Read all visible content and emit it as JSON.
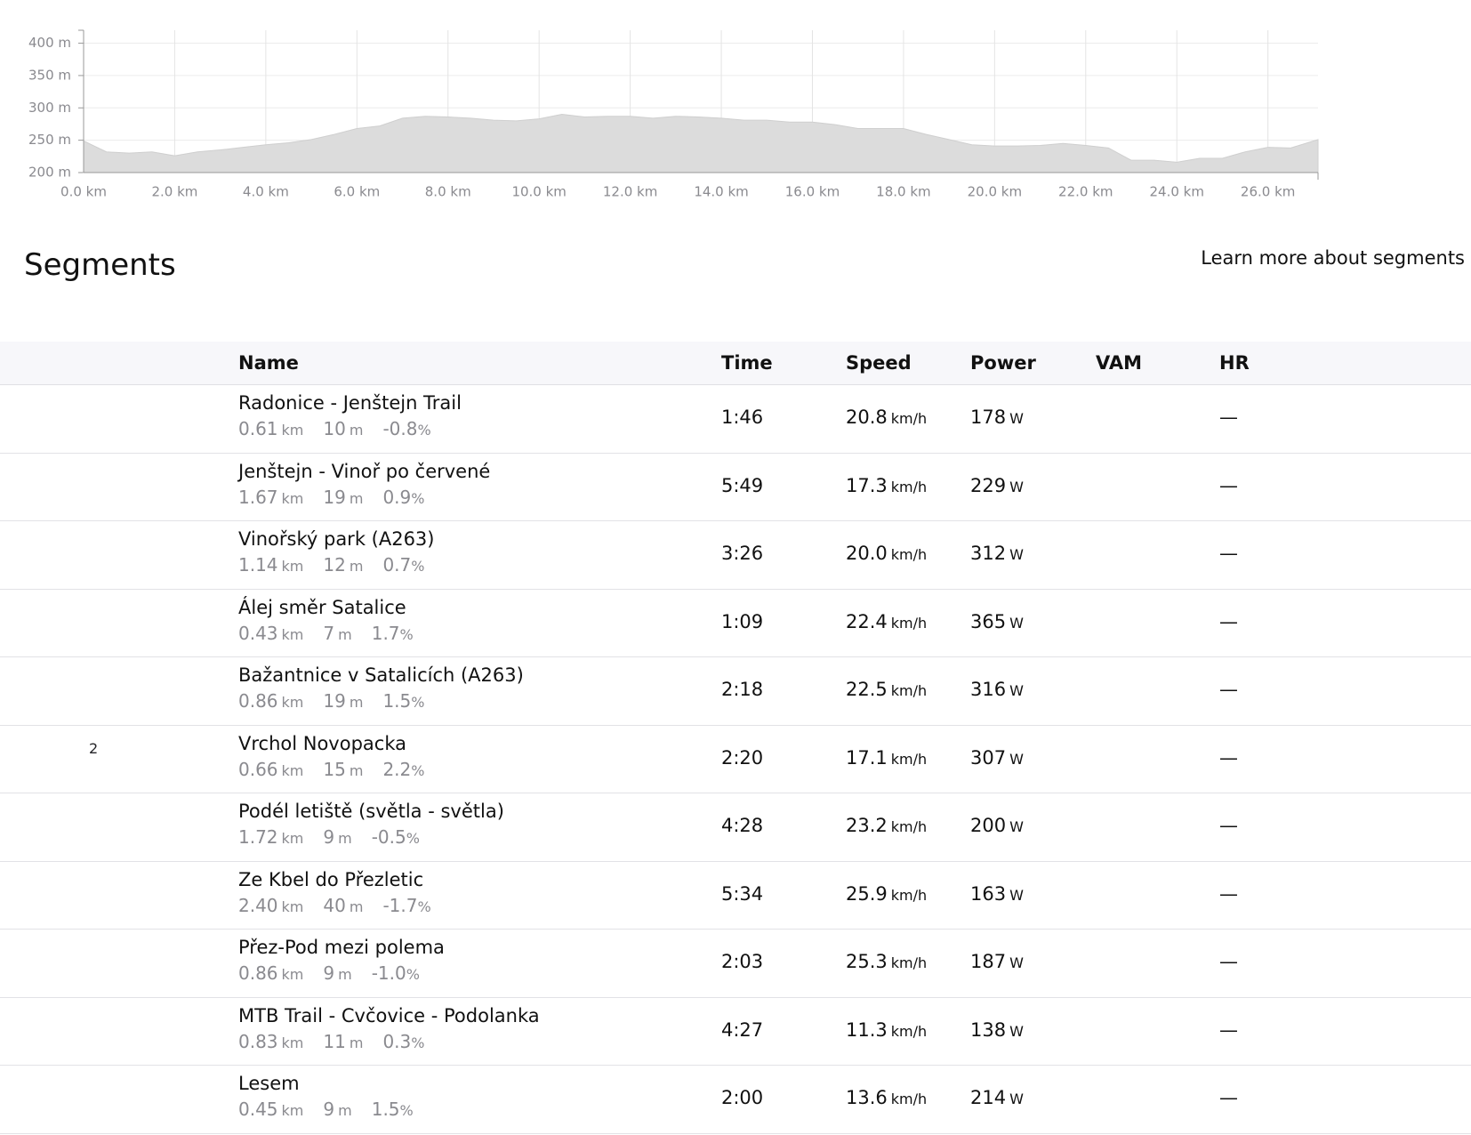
{
  "chart_data": {
    "type": "area",
    "x": [
      0,
      0.5,
      1,
      1.5,
      2,
      2.5,
      3,
      3.5,
      4,
      4.5,
      5,
      5.5,
      6,
      6.5,
      7,
      7.5,
      8,
      8.5,
      9,
      9.5,
      10,
      10.5,
      11,
      11.5,
      12,
      12.5,
      13,
      13.5,
      14,
      14.5,
      15,
      15.5,
      16,
      16.5,
      17,
      17.5,
      18,
      18.5,
      19,
      19.5,
      20,
      20.5,
      21,
      21.5,
      22,
      22.5,
      23,
      23.5,
      24,
      24.5,
      25,
      25.5,
      26,
      26.5,
      27.1
    ],
    "values": [
      249,
      232,
      230,
      232,
      226,
      232,
      235,
      239,
      243,
      246,
      251,
      259,
      268,
      272,
      284,
      287,
      286,
      284,
      281,
      280,
      283,
      290,
      286,
      287,
      287,
      284,
      287,
      286,
      284,
      281,
      281,
      278,
      278,
      274,
      268,
      268,
      268,
      259,
      251,
      243,
      241,
      241,
      242,
      245,
      242,
      238,
      219,
      219,
      216,
      222,
      222,
      232,
      239,
      238,
      251
    ],
    "color": "#dcdcdc",
    "xlim": [
      0,
      27.1
    ],
    "ylim": [
      200,
      420
    ],
    "xticks": [
      {
        "value": 0,
        "label": "0.0 km"
      },
      {
        "value": 2,
        "label": "2.0 km"
      },
      {
        "value": 4,
        "label": "4.0 km"
      },
      {
        "value": 6,
        "label": "6.0 km"
      },
      {
        "value": 8,
        "label": "8.0 km"
      },
      {
        "value": 10,
        "label": "10.0 km"
      },
      {
        "value": 12,
        "label": "12.0 km"
      },
      {
        "value": 14,
        "label": "14.0 km"
      },
      {
        "value": 16,
        "label": "16.0 km"
      },
      {
        "value": 18,
        "label": "18.0 km"
      },
      {
        "value": 20,
        "label": "20.0 km"
      },
      {
        "value": 22,
        "label": "22.0 km"
      },
      {
        "value": 24,
        "label": "24.0 km"
      },
      {
        "value": 26,
        "label": "26.0 km"
      }
    ],
    "yticks": [
      {
        "value": 200,
        "label": "200 m"
      },
      {
        "value": 250,
        "label": "250 m"
      },
      {
        "value": 300,
        "label": "300 m"
      },
      {
        "value": 350,
        "label": "350 m"
      },
      {
        "value": 400,
        "label": "400 m"
      }
    ],
    "grid": true
  },
  "segments": {
    "title": "Segments",
    "link": "Learn more about segments",
    "columns": [
      "Name",
      "Time",
      "Speed",
      "Power",
      "VAM",
      "HR"
    ],
    "rows": [
      {
        "name": "Radonice - Jenštejn Trail",
        "distance": "0.61",
        "distance_unit": "km",
        "elevation": "10",
        "elevation_unit": "m",
        "grade": "-0.8",
        "grade_unit": "%",
        "time": "1:46",
        "speed": "20.8",
        "speed_unit": "km/h",
        "power": "178",
        "power_unit": "W",
        "hr": "—"
      },
      {
        "name": "Jenštejn - Vinoř po červené",
        "distance": "1.67",
        "distance_unit": "km",
        "elevation": "19",
        "elevation_unit": "m",
        "grade": "0.9",
        "grade_unit": "%",
        "time": "5:49",
        "speed": "17.3",
        "speed_unit": "km/h",
        "power": "229",
        "power_unit": "W",
        "hr": "—"
      },
      {
        "name": "Vinořský park (A263)",
        "distance": "1.14",
        "distance_unit": "km",
        "elevation": "12",
        "elevation_unit": "m",
        "grade": "0.7",
        "grade_unit": "%",
        "time": "3:26",
        "speed": "20.0",
        "speed_unit": "km/h",
        "power": "312",
        "power_unit": "W",
        "hr": "—"
      },
      {
        "name": "Álej směr Satalice",
        "distance": "0.43",
        "distance_unit": "km",
        "elevation": "7",
        "elevation_unit": "m",
        "grade": "1.7",
        "grade_unit": "%",
        "time": "1:09",
        "speed": "22.4",
        "speed_unit": "km/h",
        "power": "365",
        "power_unit": "W",
        "hr": "—"
      },
      {
        "name": "Bažantnice v Satalicích (A263)",
        "distance": "0.86",
        "distance_unit": "km",
        "elevation": "19",
        "elevation_unit": "m",
        "grade": "1.5",
        "grade_unit": "%",
        "time": "2:18",
        "speed": "22.5",
        "speed_unit": "km/h",
        "power": "316",
        "power_unit": "W",
        "hr": "—"
      },
      {
        "name": "Vrchol Novopacka",
        "achievement": "2",
        "distance": "0.66",
        "distance_unit": "km",
        "elevation": "15",
        "elevation_unit": "m",
        "grade": "2.2",
        "grade_unit": "%",
        "time": "2:20",
        "speed": "17.1",
        "speed_unit": "km/h",
        "power": "307",
        "power_unit": "W",
        "hr": "—"
      },
      {
        "name": "Podél letiště (světla - světla)",
        "distance": "1.72",
        "distance_unit": "km",
        "elevation": "9",
        "elevation_unit": "m",
        "grade": "-0.5",
        "grade_unit": "%",
        "time": "4:28",
        "speed": "23.2",
        "speed_unit": "km/h",
        "power": "200",
        "power_unit": "W",
        "hr": "—"
      },
      {
        "name": "Ze Kbel do Přezletic",
        "distance": "2.40",
        "distance_unit": "km",
        "elevation": "40",
        "elevation_unit": "m",
        "grade": "-1.7",
        "grade_unit": "%",
        "time": "5:34",
        "speed": "25.9",
        "speed_unit": "km/h",
        "power": "163",
        "power_unit": "W",
        "hr": "—"
      },
      {
        "name": "Přez-Pod mezi polema",
        "distance": "0.86",
        "distance_unit": "km",
        "elevation": "9",
        "elevation_unit": "m",
        "grade": "-1.0",
        "grade_unit": "%",
        "time": "2:03",
        "speed": "25.3",
        "speed_unit": "km/h",
        "power": "187",
        "power_unit": "W",
        "hr": "—"
      },
      {
        "name": "MTB Trail - Cvčovice - Podolanka",
        "distance": "0.83",
        "distance_unit": "km",
        "elevation": "11",
        "elevation_unit": "m",
        "grade": "0.3",
        "grade_unit": "%",
        "time": "4:27",
        "speed": "11.3",
        "speed_unit": "km/h",
        "power": "138",
        "power_unit": "W",
        "hr": "—"
      },
      {
        "name": "Lesem",
        "distance": "0.45",
        "distance_unit": "km",
        "elevation": "9",
        "elevation_unit": "m",
        "grade": "1.5",
        "grade_unit": "%",
        "time": "2:00",
        "speed": "13.6",
        "speed_unit": "km/h",
        "power": "214",
        "power_unit": "W",
        "hr": "—"
      }
    ]
  }
}
